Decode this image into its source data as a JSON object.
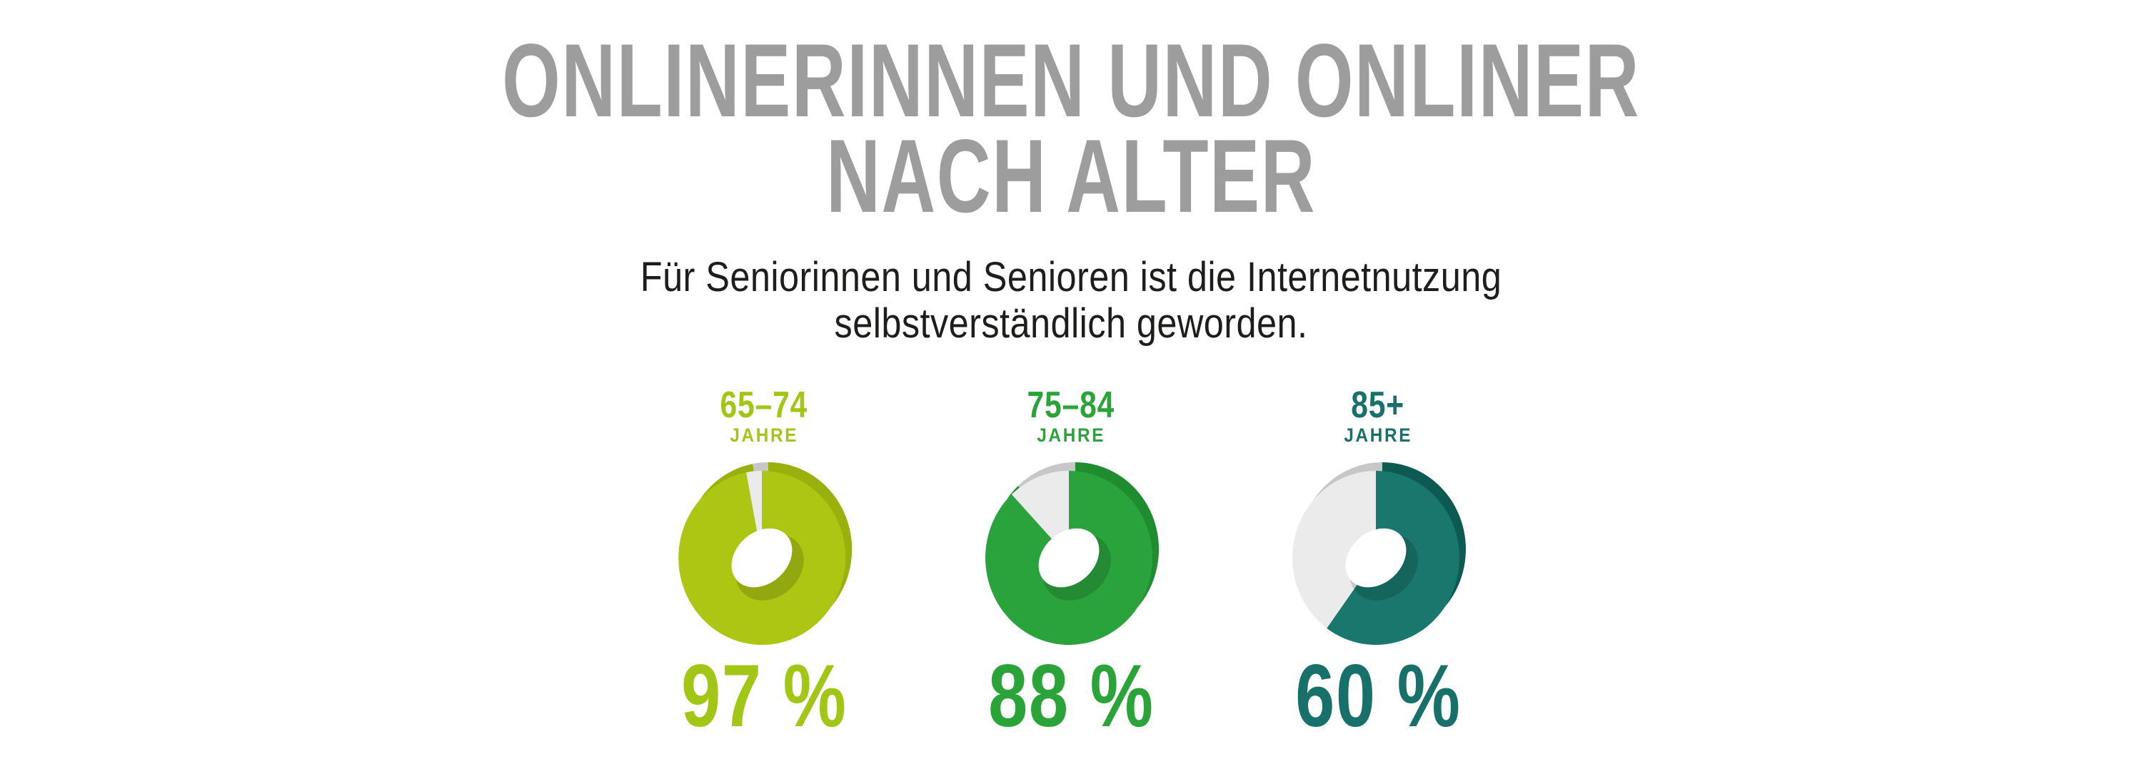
{
  "header": {
    "title_line1": "ONLINERINNEN UND ONLINER",
    "title_line2": "NACH ALTER",
    "title_color": "#9d9d9d"
  },
  "subtitle": {
    "line1": "Für Seniorinnen und Senioren ist die Internetnutzung",
    "line2": "selbstverständlich geworden.",
    "color": "#1d1d1b"
  },
  "chart_data": {
    "type": "pie",
    "variant": "3d-donut",
    "title": "Onlinerinnen und Onliner nach Alter",
    "subtitle": "Für Seniorinnen und Senioren ist die Internetnutzung selbstverständlich geworden.",
    "unit": "%",
    "legend": "none",
    "categories": [
      "65–74 Jahre",
      "75–84 Jahre",
      "85+ Jahre"
    ],
    "values": [
      97,
      88,
      60
    ],
    "groups": [
      {
        "age_range": "65–74",
        "age_unit": "JAHRE",
        "value": 97,
        "value_label": "97 %",
        "color": "#adc613",
        "color_dark": "#9ab00c",
        "accent": "#a2c616"
      },
      {
        "age_range": "75–84",
        "age_unit": "JAHRE",
        "value": 88,
        "value_label": "88 %",
        "color": "#2ba33c",
        "color_dark": "#1e8c2f",
        "accent": "#2aa339"
      },
      {
        "age_range": "85+",
        "age_unit": "JAHRE",
        "value": 60,
        "value_label": "60 %",
        "color": "#19776d",
        "color_dark": "#0d5a52",
        "accent": "#17706a"
      }
    ],
    "remainder_color": "#ebebeb",
    "remainder_color_dark": "#c7c7c7"
  }
}
